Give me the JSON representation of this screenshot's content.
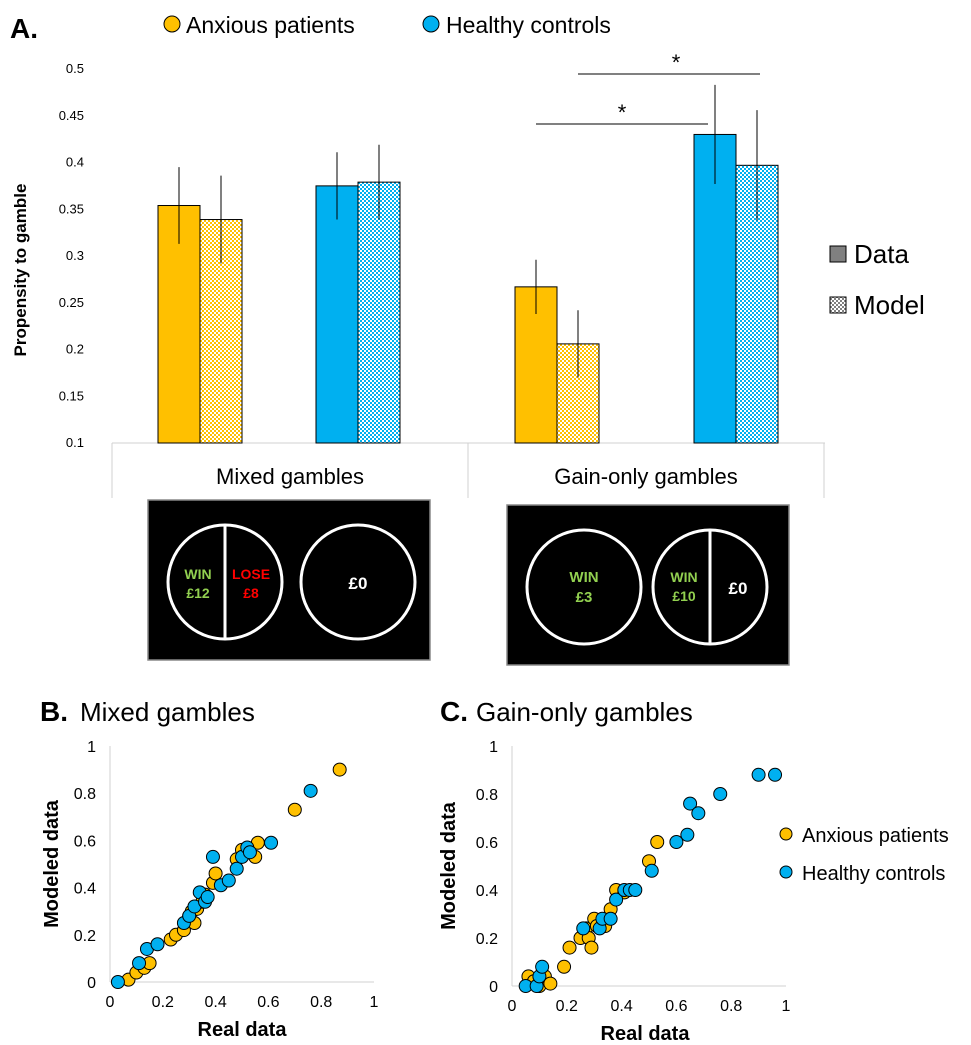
{
  "colors": {
    "anxious": "#FFC000",
    "healthy": "#00B0F0",
    "data_legend_fill": "#808080",
    "win": "#92D050",
    "lose": "#FF0000",
    "panel_bg": "#000000"
  },
  "panel_a": {
    "label": "A.",
    "legend_top": [
      {
        "name": "Anxious patients",
        "color": "#FFC000"
      },
      {
        "name": "Healthy controls",
        "color": "#00B0F0"
      }
    ],
    "legend_side": {
      "data": "Data",
      "model": "Model"
    },
    "significance": [
      "*",
      "*"
    ],
    "illustrations": {
      "mixed": {
        "win_label": "WIN",
        "win_amount": "£12",
        "lose_label": "LOSE",
        "lose_amount": "£8",
        "sure": "£0"
      },
      "gain": {
        "sure_label": "WIN",
        "sure_amount": "£3",
        "win_label": "WIN",
        "win_amount": "£10",
        "zero": "£0"
      }
    }
  },
  "panel_b": {
    "label": "B.",
    "title": "Mixed gambles"
  },
  "panel_c": {
    "label": "C.",
    "title": "Gain-only gambles"
  },
  "chart_data": [
    {
      "type": "bar",
      "ylabel": "Propensity to gamble",
      "ylim": [
        0.1,
        0.5
      ],
      "yticks": [
        "0.1",
        "0.15",
        "0.2",
        "0.25",
        "0.3",
        "0.35",
        "0.4",
        "0.45",
        "0.5"
      ],
      "categories": [
        "Mixed gambles",
        "Gain-only gambles"
      ],
      "series": [
        {
          "name": "Anxious patients",
          "kind": "Data",
          "color": "#FFC000",
          "values": [
            0.354,
            0.267
          ],
          "err": [
            0.041,
            0.029
          ]
        },
        {
          "name": "Anxious patients",
          "kind": "Model",
          "color": "#FFC000",
          "values": [
            0.339,
            0.206
          ],
          "err": [
            0.047,
            0.036
          ]
        },
        {
          "name": "Healthy controls",
          "kind": "Data",
          "color": "#00B0F0",
          "values": [
            0.375,
            0.43
          ],
          "err": [
            0.036,
            0.053
          ]
        },
        {
          "name": "Healthy controls",
          "kind": "Model",
          "color": "#00B0F0",
          "values": [
            0.379,
            0.397
          ],
          "err": [
            0.04,
            0.059
          ]
        }
      ],
      "legend": [
        "Data",
        "Model"
      ],
      "legend_position": "right"
    },
    {
      "type": "scatter",
      "title": "Mixed gambles",
      "xlabel": "Real data",
      "ylabel": "Modeled data",
      "xlim": [
        0,
        1
      ],
      "ylim": [
        0,
        1
      ],
      "xticks": [
        "0",
        "0.2",
        "0.4",
        "0.6",
        "0.8",
        "1"
      ],
      "yticks": [
        "0",
        "0.2",
        "0.4",
        "0.6",
        "0.8",
        "1"
      ],
      "series": [
        {
          "name": "Anxious patients",
          "color": "#FFC000",
          "points": [
            [
              0.07,
              0.01
            ],
            [
              0.1,
              0.04
            ],
            [
              0.13,
              0.06
            ],
            [
              0.15,
              0.08
            ],
            [
              0.23,
              0.18
            ],
            [
              0.25,
              0.2
            ],
            [
              0.28,
              0.22
            ],
            [
              0.3,
              0.28
            ],
            [
              0.31,
              0.3
            ],
            [
              0.33,
              0.31
            ],
            [
              0.32,
              0.25
            ],
            [
              0.35,
              0.34
            ],
            [
              0.36,
              0.37
            ],
            [
              0.39,
              0.42
            ],
            [
              0.4,
              0.46
            ],
            [
              0.48,
              0.52
            ],
            [
              0.5,
              0.56
            ],
            [
              0.55,
              0.53
            ],
            [
              0.56,
              0.59
            ],
            [
              0.7,
              0.73
            ],
            [
              0.87,
              0.9
            ]
          ]
        },
        {
          "name": "Healthy controls",
          "color": "#00B0F0",
          "points": [
            [
              0.03,
              0.0
            ],
            [
              0.11,
              0.08
            ],
            [
              0.14,
              0.14
            ],
            [
              0.18,
              0.16
            ],
            [
              0.28,
              0.25
            ],
            [
              0.3,
              0.28
            ],
            [
              0.32,
              0.32
            ],
            [
              0.34,
              0.38
            ],
            [
              0.36,
              0.34
            ],
            [
              0.37,
              0.36
            ],
            [
              0.39,
              0.53
            ],
            [
              0.42,
              0.41
            ],
            [
              0.45,
              0.43
            ],
            [
              0.48,
              0.48
            ],
            [
              0.5,
              0.53
            ],
            [
              0.52,
              0.57
            ],
            [
              0.53,
              0.55
            ],
            [
              0.61,
              0.59
            ],
            [
              0.76,
              0.81
            ]
          ]
        }
      ]
    },
    {
      "type": "scatter",
      "title": "Gain-only gambles",
      "xlabel": "Real data",
      "ylabel": "Modeled data",
      "xlim": [
        0,
        1
      ],
      "ylim": [
        0,
        1
      ],
      "xticks": [
        "0",
        "0.2",
        "0.4",
        "0.6",
        "0.8",
        "1"
      ],
      "yticks": [
        "0",
        "0.2",
        "0.4",
        "0.6",
        "0.8",
        "1"
      ],
      "legend": [
        "Anxious patients",
        "Healthy controls"
      ],
      "legend_position": "right",
      "series": [
        {
          "name": "Anxious patients",
          "color": "#FFC000",
          "points": [
            [
              0.06,
              0.04
            ],
            [
              0.08,
              0.02
            ],
            [
              0.1,
              0.0
            ],
            [
              0.12,
              0.04
            ],
            [
              0.14,
              0.01
            ],
            [
              0.19,
              0.08
            ],
            [
              0.21,
              0.16
            ],
            [
              0.25,
              0.2
            ],
            [
              0.27,
              0.24
            ],
            [
              0.28,
              0.2
            ],
            [
              0.29,
              0.16
            ],
            [
              0.3,
              0.28
            ],
            [
              0.31,
              0.25
            ],
            [
              0.34,
              0.25
            ],
            [
              0.36,
              0.32
            ],
            [
              0.38,
              0.4
            ],
            [
              0.41,
              0.39
            ],
            [
              0.5,
              0.52
            ],
            [
              0.53,
              0.6
            ]
          ]
        },
        {
          "name": "Healthy controls",
          "color": "#00B0F0",
          "points": [
            [
              0.05,
              0.0
            ],
            [
              0.09,
              0.0
            ],
            [
              0.1,
              0.04
            ],
            [
              0.11,
              0.08
            ],
            [
              0.26,
              0.24
            ],
            [
              0.32,
              0.24
            ],
            [
              0.33,
              0.28
            ],
            [
              0.36,
              0.28
            ],
            [
              0.38,
              0.36
            ],
            [
              0.41,
              0.4
            ],
            [
              0.43,
              0.4
            ],
            [
              0.45,
              0.4
            ],
            [
              0.51,
              0.48
            ],
            [
              0.6,
              0.6
            ],
            [
              0.64,
              0.63
            ],
            [
              0.65,
              0.76
            ],
            [
              0.68,
              0.72
            ],
            [
              0.76,
              0.8
            ],
            [
              0.9,
              0.88
            ],
            [
              0.96,
              0.88
            ]
          ]
        }
      ]
    }
  ]
}
